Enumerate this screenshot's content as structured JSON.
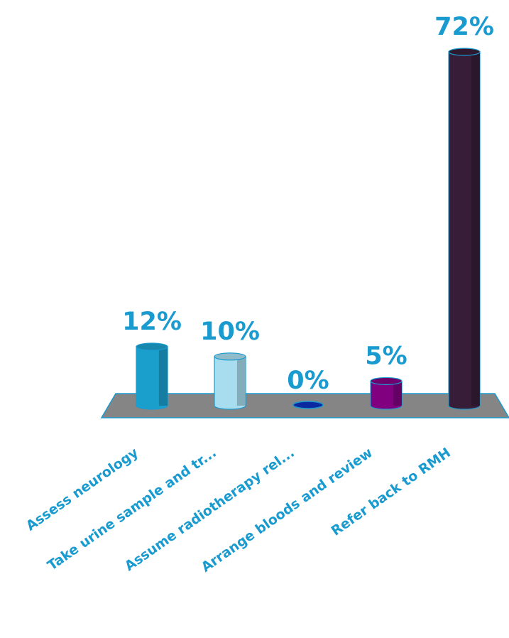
{
  "chart_data": {
    "type": "bar",
    "style": "3d-cylinder",
    "categories": [
      "Assess neurology",
      "Take urine sample and tr...",
      "Assume radiotherapy rel...",
      "Arrange bloods and review",
      "Refer back to RMH"
    ],
    "values": [
      12,
      10,
      0,
      5,
      72
    ],
    "value_labels": [
      "12%",
      "10%",
      "0%",
      "5%",
      "72%"
    ],
    "ylim": [
      0,
      72
    ],
    "grid": false,
    "legend": "none",
    "colors": {
      "bars": [
        "#1a9fcc",
        "#a8dcef",
        "#0c2aa0",
        "#800080",
        "#371d37"
      ],
      "labels": "#1a9bd0",
      "floor": "#858585"
    }
  }
}
